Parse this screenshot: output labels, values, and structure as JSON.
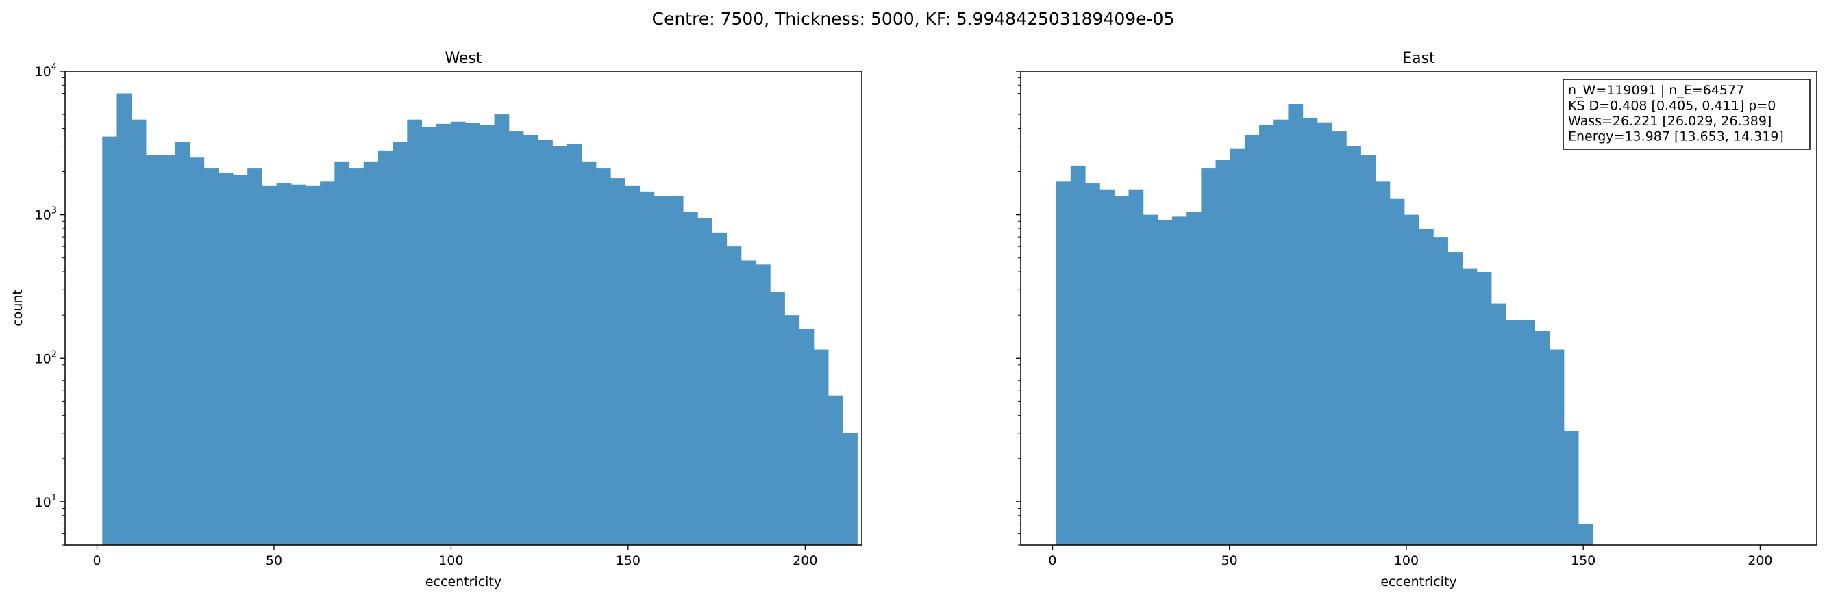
{
  "figure": {
    "suptitle": "Centre: 7500, Thickness: 5000, KF: 5.994842503189409e-05"
  },
  "chart_data": [
    {
      "type": "bar",
      "title": "West",
      "xlabel": "eccentricity",
      "ylabel": "count",
      "xlim": [
        -9,
        216
      ],
      "ylim": [
        5,
        10000
      ],
      "yscale": "log",
      "color": "#4d93c3",
      "x_ticks": [
        0,
        50,
        100,
        150,
        200
      ],
      "y_ticks": [
        {
          "value": 10,
          "label": "10",
          "exp": "1"
        },
        {
          "value": 100,
          "label": "10",
          "exp": "2"
        },
        {
          "value": 1000,
          "label": "10",
          "exp": "3"
        },
        {
          "value": 10000,
          "label": "10",
          "exp": "4"
        }
      ],
      "bin_start": 1.5,
      "bin_width": 4.1,
      "values": [
        3500,
        7000,
        4600,
        2600,
        2600,
        3200,
        2500,
        2100,
        1950,
        1900,
        2100,
        1600,
        1650,
        1620,
        1600,
        1700,
        2350,
        2100,
        2350,
        2800,
        3200,
        4600,
        4100,
        4300,
        4450,
        4350,
        4200,
        5000,
        3800,
        3600,
        3300,
        3000,
        3100,
        2350,
        2100,
        1800,
        1600,
        1450,
        1350,
        1350,
        1050,
        950,
        750,
        600,
        480,
        450,
        290,
        200,
        160,
        115,
        55,
        30
      ]
    },
    {
      "type": "bar",
      "title": "East",
      "xlabel": "eccentricity",
      "ylabel": "",
      "xlim": [
        -9,
        216
      ],
      "ylim": [
        5,
        10000
      ],
      "yscale": "log",
      "color": "#4d93c3",
      "x_ticks": [
        0,
        50,
        100,
        150,
        200
      ],
      "bin_start": 1.0,
      "bin_width": 4.1,
      "values": [
        1700,
        2200,
        1650,
        1500,
        1350,
        1500,
        1000,
        920,
        970,
        1050,
        2100,
        2400,
        2900,
        3600,
        4200,
        4600,
        5900,
        4700,
        4400,
        3800,
        3000,
        2600,
        1700,
        1300,
        1000,
        800,
        700,
        550,
        420,
        400,
        240,
        185,
        185,
        155,
        115,
        31,
        7
      ]
    }
  ],
  "annotation": {
    "lines": [
      "n_W=119091 | n_E=64577",
      "KS D=0.408 [0.405, 0.411]  p=0",
      "Wass=26.221 [26.029, 26.389]",
      "Energy=13.987 [13.653, 14.319]"
    ]
  }
}
